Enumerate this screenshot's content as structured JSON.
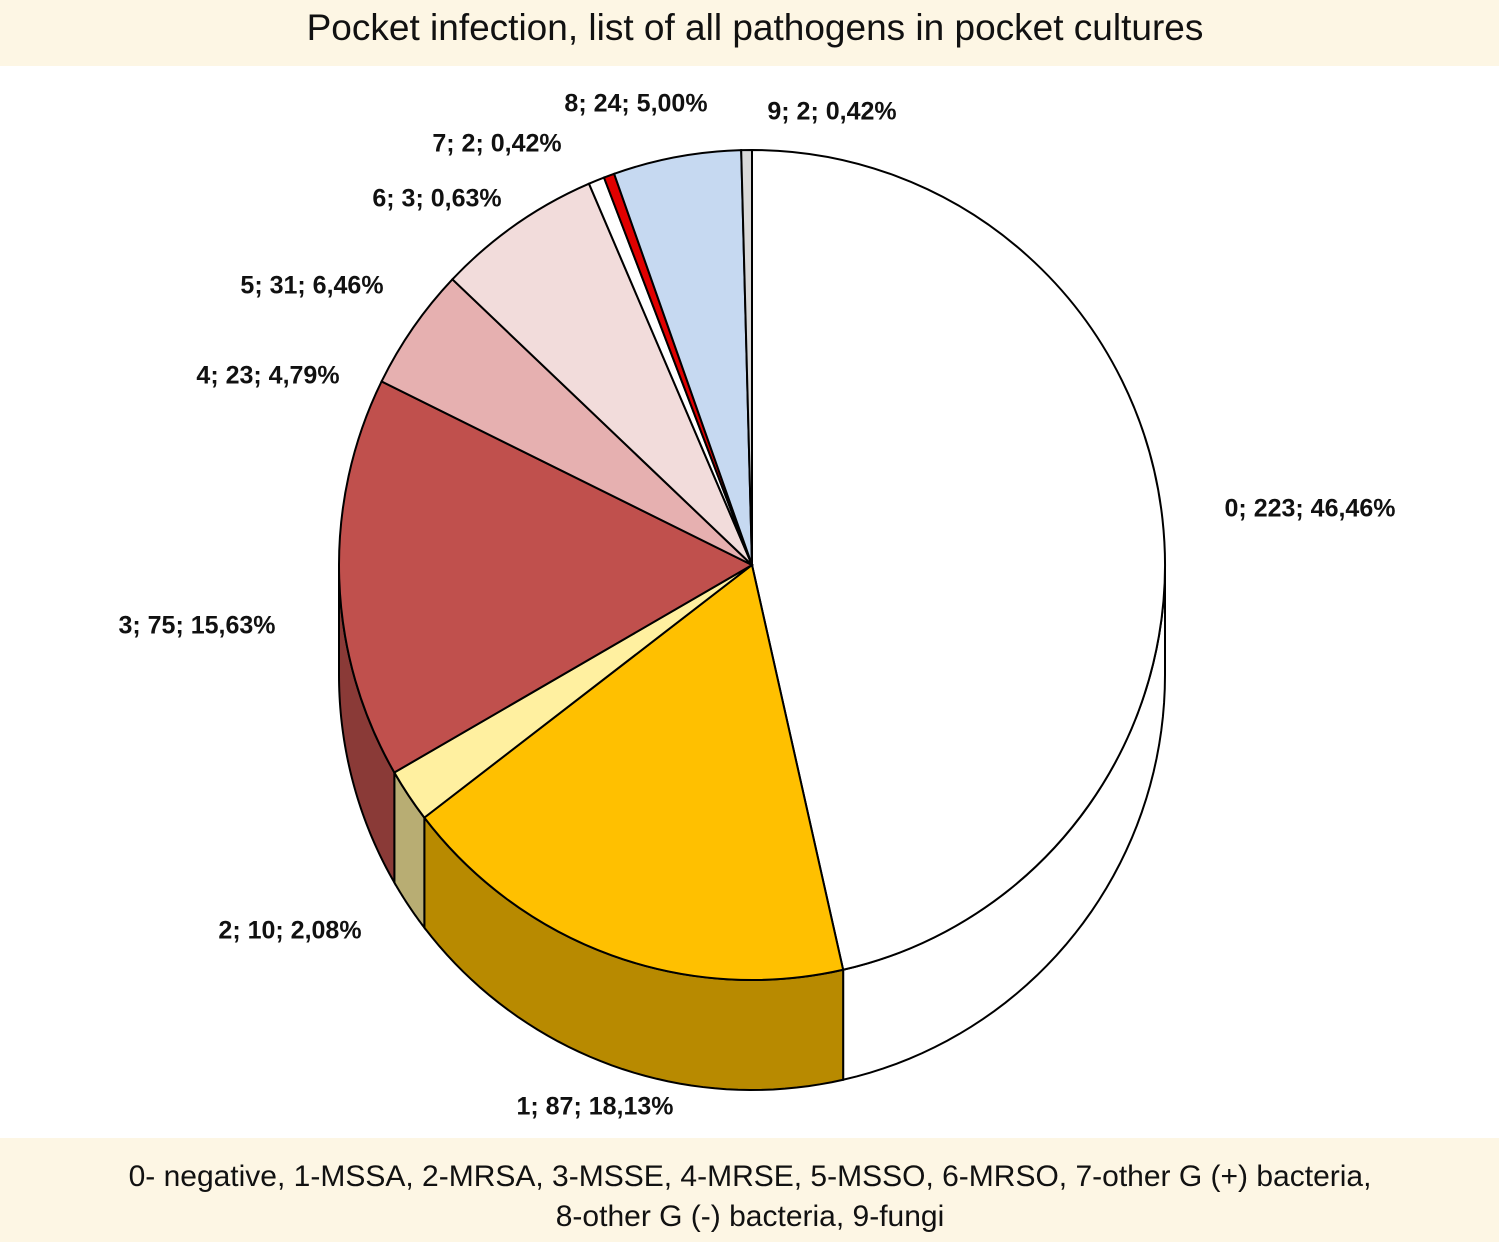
{
  "chart_data": {
    "type": "pie",
    "title": "Pocket infection, list of all pathogens in pocket cultures",
    "categories": [
      "0",
      "1",
      "2",
      "3",
      "4",
      "5",
      "6",
      "7",
      "8",
      "9"
    ],
    "values": [
      223,
      87,
      10,
      75,
      23,
      31,
      3,
      2,
      24,
      2
    ],
    "value_labels": [
      "0; 223; 46,46%",
      "1; 87; 18,13%",
      "2; 10; 2,08%",
      "3; 75; 15,63%",
      "4; 23; 4,79%",
      "5; 31; 6,46%",
      "6; 3; 0,63%",
      "7; 2; 0,42%",
      "8; 24; 5,00%",
      "9; 2; 0,42%"
    ],
    "colors": [
      "#ffffff",
      "#ffc000",
      "#fff0a0",
      "#c0504d",
      "#e6b0b0",
      "#f2dcdb",
      "#ffffff",
      "#e00000",
      "#c6d9f1",
      "#d9d9d9"
    ],
    "note": [
      "0- negative, 1-MSSA, 2-MRSA, 3-MSSE, 4-MRSE, 5-MSSO, 6-MRSO, 7-other G (+) bacteria,",
      "8-other G (-) bacteria, 9-fungi"
    ]
  }
}
